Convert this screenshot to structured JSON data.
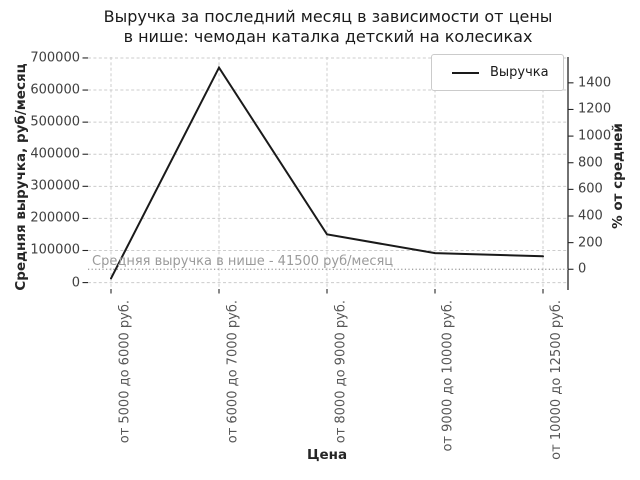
{
  "chart_data": {
    "type": "line",
    "title": "Выручка за последний месяц в зависимости от цены в нише: чемодан каталка детский на колесиках",
    "title_lines": [
      "Выручка за последний месяц в зависимости от цены",
      "в нише: чемодан каталка детский на колесиках"
    ],
    "xlabel": "Цена",
    "ylabel_left": "Средняя выручка, руб/месяц",
    "ylabel_right": "% от средней",
    "categories": [
      "от 5000 до 6000 руб.",
      "от 6000 до 7000 руб.",
      "от 8000 до 9000 руб.",
      "от 9000 до 10000 руб.",
      "от 10000 до 12500 руб."
    ],
    "series": [
      {
        "name": "Выручка",
        "values": [
          13000,
          670000,
          150000,
          92000,
          82000
        ]
      }
    ],
    "ylim_left": [
      0,
      700000
    ],
    "yticks_left": [
      0,
      100000,
      200000,
      300000,
      400000,
      500000,
      600000,
      700000
    ],
    "yticks_right": [
      0,
      200,
      400,
      600,
      800,
      1000,
      1200,
      1400
    ],
    "average_line": {
      "value": 41500,
      "label": "Средняя выручка в нише - 41500 руб/месяц"
    },
    "legend": {
      "position": "upper right",
      "entries": [
        "Выручка"
      ]
    },
    "grid": true,
    "colors": {
      "line": "#1a1a1a",
      "grid": "#cccccc",
      "spine": "#262626",
      "tick": "#262626",
      "average_line": "#a3a3a3",
      "annotation_text": "#9b9b9b"
    }
  }
}
